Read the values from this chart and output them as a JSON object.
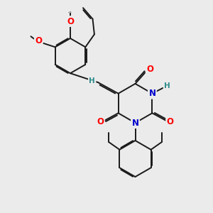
{
  "bg_color": "#ebebeb",
  "bond_color": "#1a1a1a",
  "bond_width": 1.4,
  "dbo": 0.07,
  "atom_colors": {
    "O": "#ff0000",
    "N": "#0000cc",
    "H": "#2e8b8b",
    "C": "#1a1a1a"
  },
  "fs": 8.5,
  "fs_small": 7.5,
  "fs_label": 7.5
}
